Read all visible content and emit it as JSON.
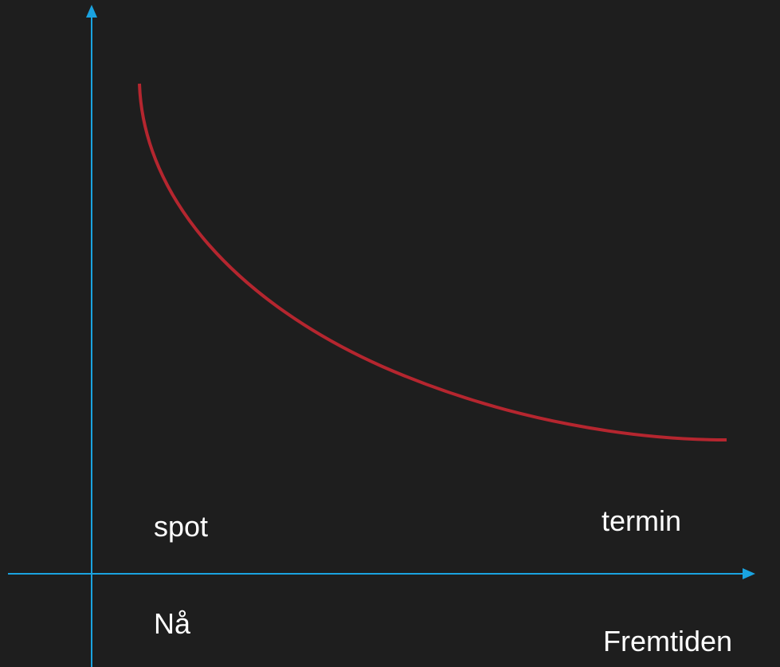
{
  "curve": {
    "start_label": "spot",
    "end_label": "termin"
  },
  "x_axis": {
    "start_label": "Nå",
    "end_label": "Fremtiden"
  }
}
